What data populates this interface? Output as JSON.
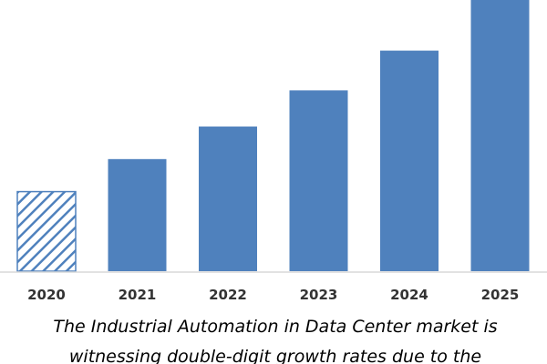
{
  "chart_data": {
    "type": "bar",
    "categories": [
      "2020",
      "2021",
      "2022",
      "2023",
      "2024",
      "2025"
    ],
    "values": [
      22,
      31,
      40,
      50,
      61,
      75
    ],
    "highlight_index": 0,
    "highlight_pattern": "diagonal-hatch",
    "ylim": [
      0,
      75
    ],
    "grid": false,
    "legend": "none",
    "bar_color": "#4f81bd",
    "hatch_color": "#4f81bd",
    "caption": [
      "The Industrial Automation in Data Center market is",
      "witnessing double-digit growth rates due to the"
    ]
  }
}
